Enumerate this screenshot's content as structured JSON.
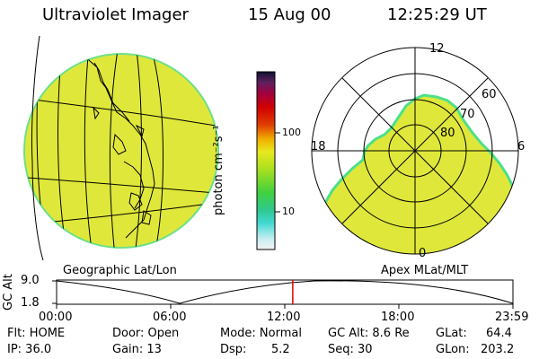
{
  "header": {
    "title": "Ultraviolet Imager",
    "date": "15 Aug 00",
    "time": "12:25:29 UT"
  },
  "geo_panel": {
    "label": "Geographic Lat/Lon"
  },
  "polar_panel": {
    "label": "Apex MLat/MLT",
    "mlt_labels": {
      "top": "12",
      "left": "18",
      "right": "6",
      "bottom": "0"
    },
    "lat_labels": [
      "60",
      "70",
      "80"
    ]
  },
  "colorbar": {
    "unit_label": "photon cm⁻²s⁻¹",
    "tick_labels": [
      "100",
      "10"
    ]
  },
  "altitude_plot": {
    "axis_label": "GC Alt",
    "y_ticks": [
      "9.0",
      "1.8"
    ],
    "time_ticks": [
      "00:00",
      "06:00",
      "12:00",
      "18:00",
      "23:59"
    ],
    "current_time_marker_hours": 12.42
  },
  "status": {
    "flt": "Flt: HOME",
    "ip": "IP: 36.0",
    "door": "Door: Open",
    "gain": "Gain: 13",
    "mode": "Mode: Normal",
    "dsp_label": "Dsp:",
    "dsp_value": "5.2",
    "gc_alt": "GC Alt: 8.6 Re",
    "seq": "Seq: 30",
    "glat_label": "GLat:",
    "glat_value": "64.4",
    "glon_label": "GLon:",
    "glon_value": "203.2"
  },
  "colors": {
    "aurora_fill": "#dfe83a",
    "aurora_edge": "#4ce08a",
    "marker": "#e00000"
  }
}
